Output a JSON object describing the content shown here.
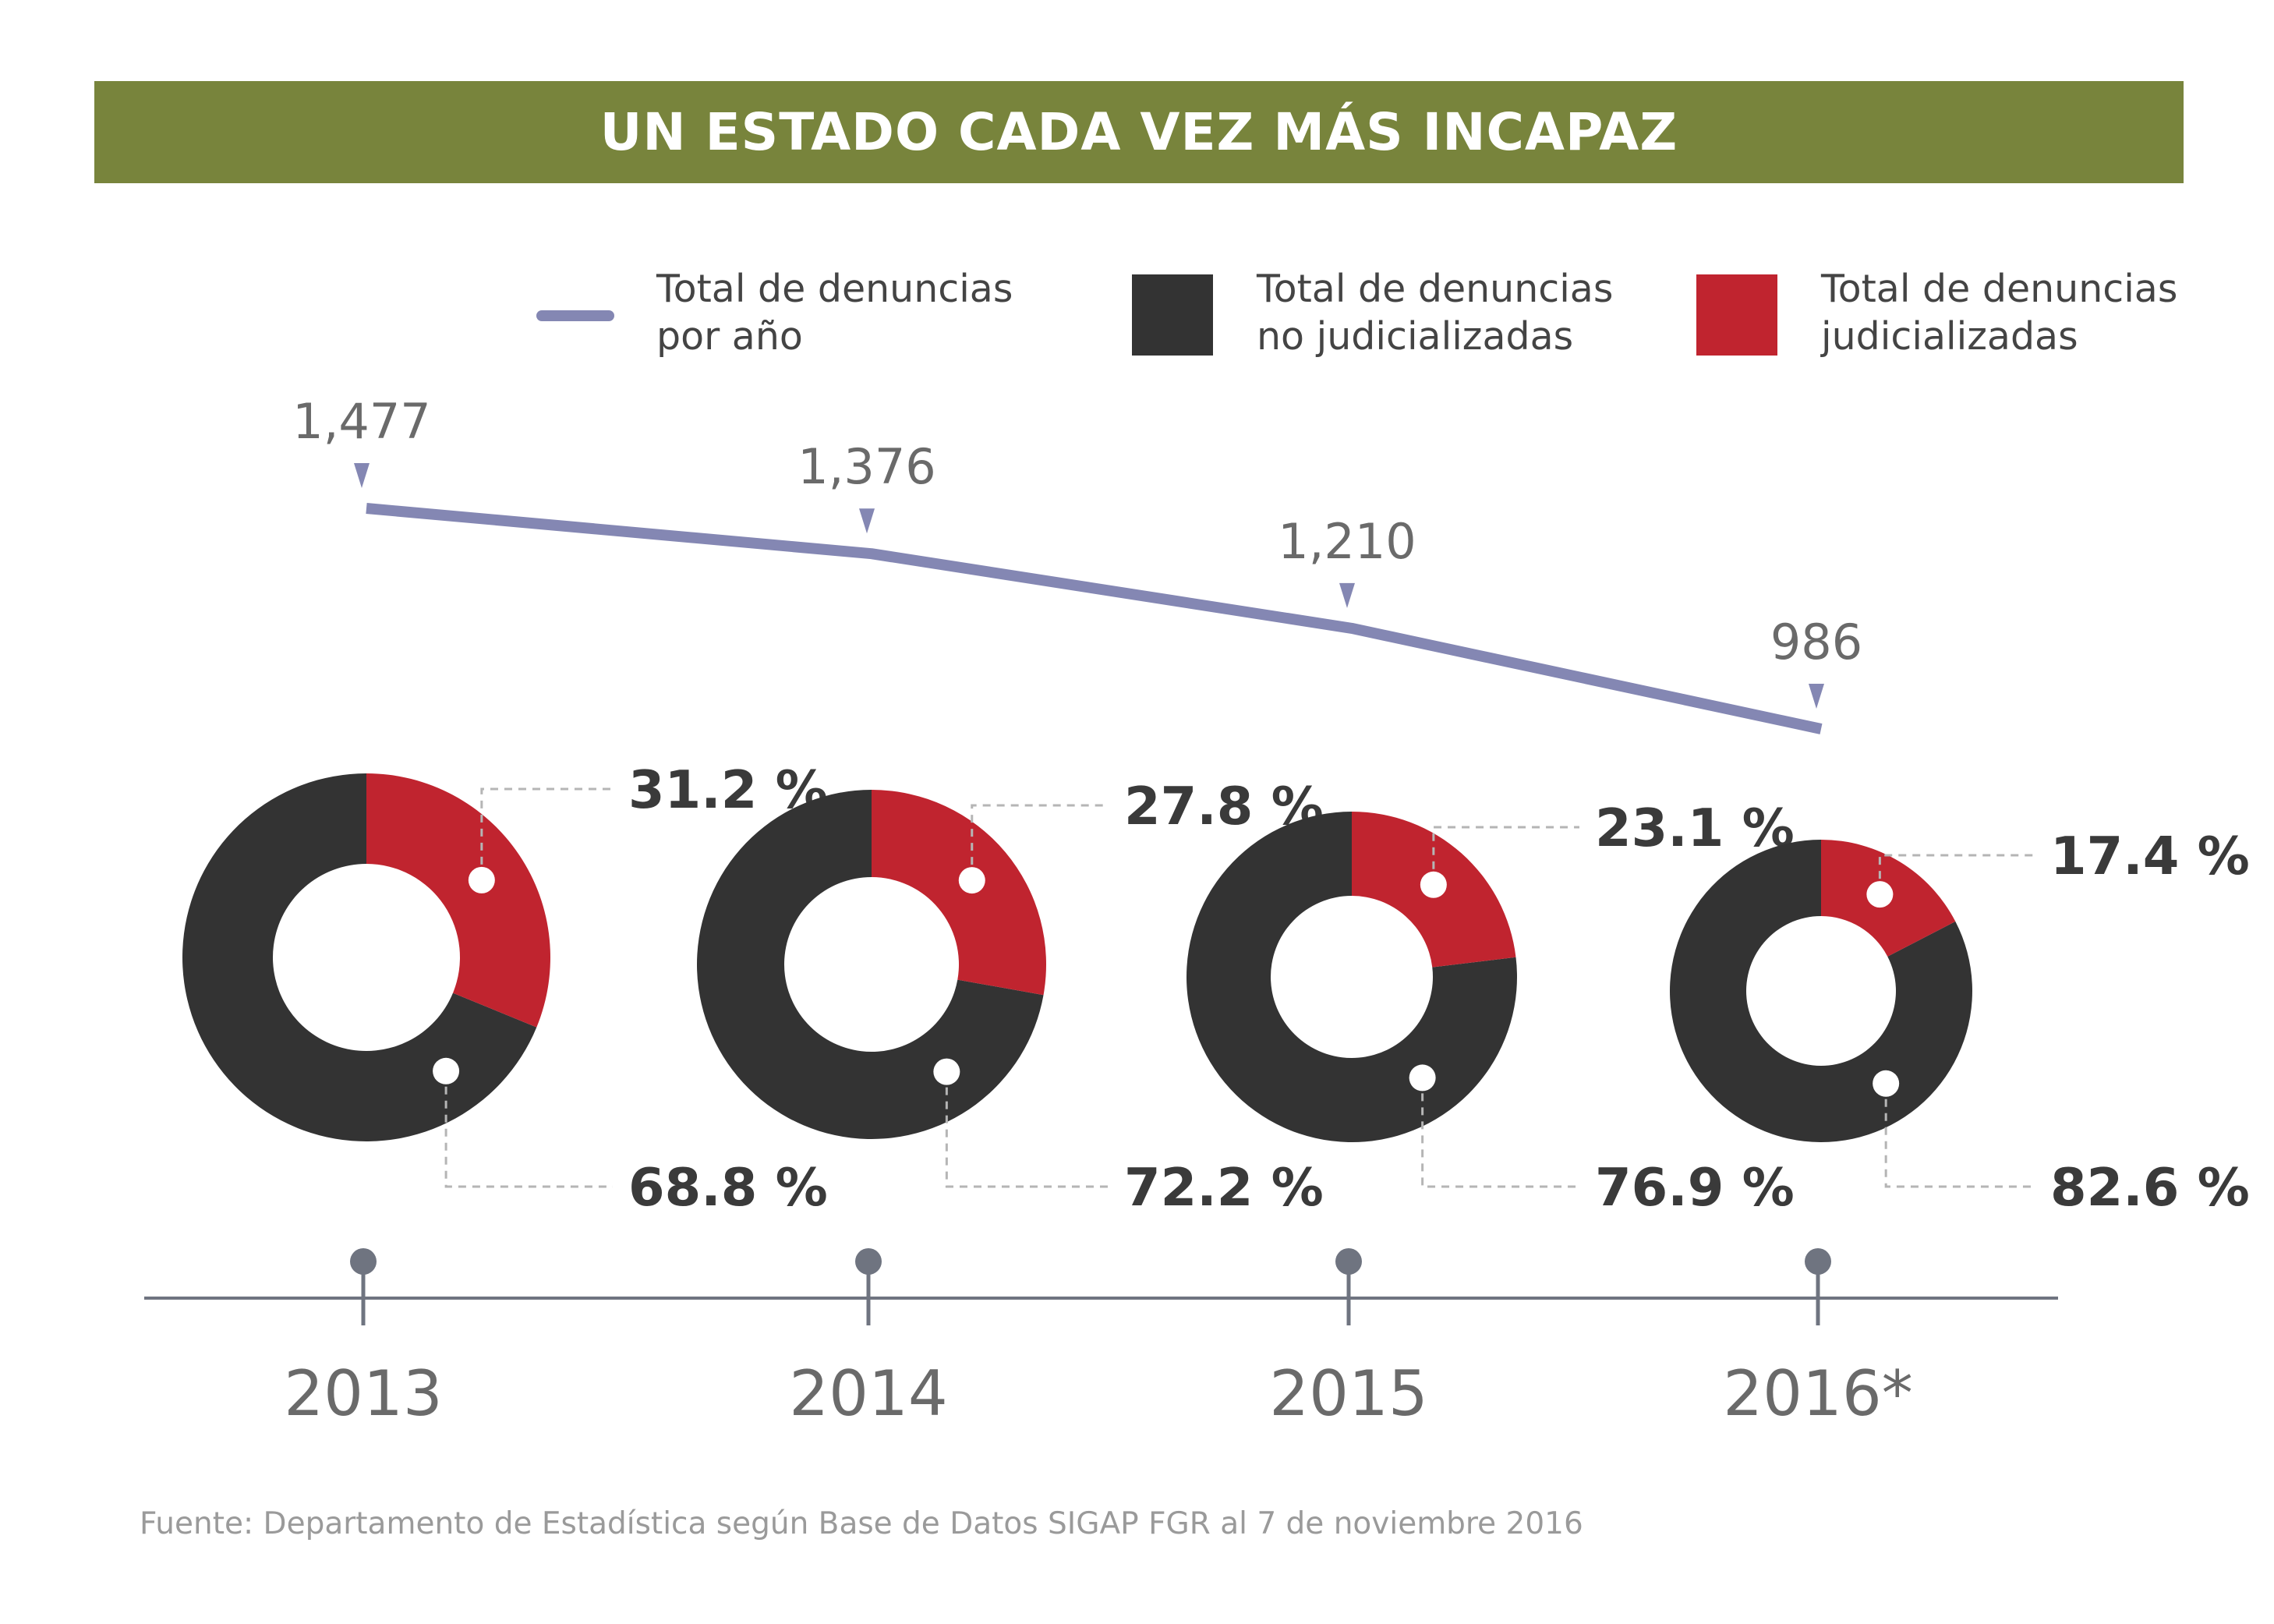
{
  "colors": {
    "title_bg": "#78843c",
    "line": "#8487b3",
    "no_judicializadas": "#333333",
    "judicializadas": "#c0242f",
    "axis": "#6f7480",
    "value_text": "#3a3a3a",
    "label_gray": "#6a6a6a",
    "leader": "#b5b5b5"
  },
  "chart_data": {
    "type": "line+donut",
    "title": "UN ESTADO CADA VEZ MÁS INCAPAZ",
    "legend": [
      {
        "key": "total",
        "marker": "line",
        "label_lines": [
          "Total de denuncias",
          "por año"
        ]
      },
      {
        "key": "no_judicializadas",
        "marker": "square",
        "label_lines": [
          "Total de denuncias",
          "no judicializadas"
        ]
      },
      {
        "key": "judicializadas",
        "marker": "square",
        "label_lines": [
          "Total de denuncias",
          "judicializadas"
        ]
      }
    ],
    "categories": [
      "2013",
      "2014",
      "2015",
      "2016*"
    ],
    "total_denuncias": [
      1477,
      1376,
      1210,
      986
    ],
    "total_labels": [
      "1,477",
      "1,376",
      "1,210",
      "986"
    ],
    "judicializadas_pct": [
      31.2,
      27.8,
      23.1,
      17.4
    ],
    "no_judicializadas_pct": [
      68.8,
      72.2,
      76.9,
      82.6
    ],
    "judicializadas_labels": [
      "31.2 %",
      "27.8 %",
      "23.1 %",
      "17.4 %"
    ],
    "no_judicializadas_labels": [
      "68.8 %",
      "72.2 %",
      "76.9 %",
      "82.6 %"
    ]
  },
  "source": "Fuente: Departamento de Estadística según Base de Datos SIGAP FGR al 7 de noviembre 2016"
}
